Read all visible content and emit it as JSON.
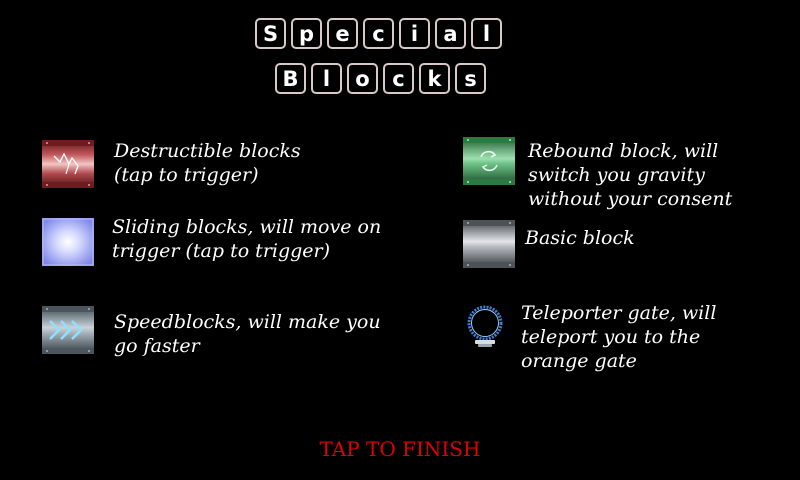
{
  "title": {
    "line1": [
      "S",
      "p",
      "e",
      "c",
      "i",
      "a",
      "l"
    ],
    "line2": [
      "B",
      "l",
      "o",
      "c",
      "k",
      "s"
    ]
  },
  "items": [
    {
      "icon": "destructible-block-icon",
      "lines": [
        "Destructible blocks",
        "(tap to trigger)"
      ]
    },
    {
      "icon": "sliding-block-icon",
      "lines": [
        "Sliding blocks, will move on",
        "trigger (tap to trigger)"
      ]
    },
    {
      "icon": "speed-block-icon",
      "lines": [
        "Speedblocks, will make you",
        "go faster"
      ]
    },
    {
      "icon": "rebound-block-icon",
      "lines": [
        "Rebound block, will",
        "switch you gravity",
        "without your consent"
      ]
    },
    {
      "icon": "basic-block-icon",
      "lines": [
        "Basic block"
      ]
    },
    {
      "icon": "teleporter-gate-icon",
      "lines": [
        "Teleporter gate, will",
        "teleport you to the",
        "orange gate"
      ]
    }
  ],
  "finish_label": "TAP TO FINISH",
  "colors": {
    "finish": "#e00000",
    "tile_border": "#d9c8c8"
  }
}
